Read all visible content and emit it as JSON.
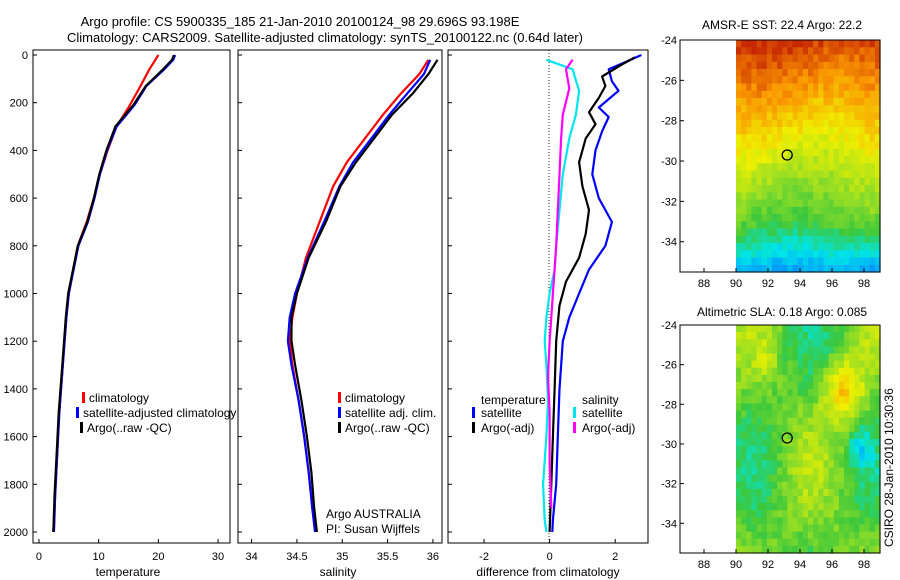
{
  "header": {
    "title_line1": "Argo profile: CS 5900335_185 21-Jan-2010 20100124_98 29.696S 93.198E",
    "title_line2": "Climatology: CARS2009. Satellite-adjusted climatology: synTS_20100122.nc (0.64d later)"
  },
  "side_label": "CSIRO 28-Jan-2010 10:30:36",
  "colors": {
    "climatology": "#ff0000",
    "satellite": "#0000ff",
    "argo": "#000000",
    "cyan": "#00e5ee",
    "magenta": "#ff00ff"
  },
  "chart_data": [
    {
      "type": "line",
      "panel": "temperature",
      "xlabel": "temperature",
      "xlim": [
        -1,
        32
      ],
      "ylim": [
        2060,
        -10
      ],
      "xticks": [
        "0",
        "10",
        "20",
        "30"
      ],
      "yticks": [
        "0",
        "200",
        "400",
        "600",
        "800",
        "1000",
        "1200",
        "1400",
        "1600",
        "1800",
        "2000"
      ],
      "legend": [
        "climatology",
        "satellite-adjusted climatology",
        "Argo(..raw -QC)"
      ],
      "series": [
        {
          "name": "climatology",
          "color": "#ff0000",
          "x": [
            20,
            19.5,
            18.5,
            17,
            15,
            13,
            11.5,
            10.2,
            9.2,
            8,
            6.5,
            5,
            4.6,
            4,
            3.4,
            3,
            2.7,
            2.5
          ],
          "y": [
            0,
            20,
            60,
            130,
            220,
            300,
            400,
            500,
            600,
            700,
            800,
            1000,
            1100,
            1300,
            1500,
            1700,
            1850,
            2000
          ]
        },
        {
          "name": "satellite-adjusted climatology",
          "color": "#0000ff",
          "x": [
            22.8,
            22.5,
            21,
            18,
            16,
            13,
            11.4,
            10.2,
            9.3,
            8.2,
            6.6,
            5,
            4.6,
            4,
            3.4,
            3,
            2.7,
            2.5
          ],
          "y": [
            0,
            20,
            60,
            130,
            210,
            300,
            400,
            500,
            600,
            700,
            800,
            1000,
            1100,
            1300,
            1500,
            1700,
            1850,
            2000
          ]
        },
        {
          "name": "Argo(..raw -QC)",
          "color": "#000000",
          "x": [
            22.6,
            22.3,
            20.8,
            17.9,
            15.8,
            12.8,
            11.3,
            10.1,
            9.2,
            8.1,
            6.5,
            4.9,
            4.5,
            3.9,
            3.3,
            2.9,
            2.6,
            2.4
          ],
          "y": [
            0,
            20,
            60,
            130,
            210,
            300,
            400,
            500,
            600,
            700,
            800,
            1000,
            1100,
            1300,
            1500,
            1700,
            1850,
            2000
          ]
        }
      ]
    },
    {
      "type": "line",
      "panel": "salinity",
      "xlabel": "salinity",
      "xlim": [
        33.85,
        36.1
      ],
      "ylim": [
        2060,
        -10
      ],
      "xticks": [
        "34",
        "34.5",
        "35",
        "35.5",
        "36"
      ],
      "legend": [
        "climatology",
        "satellite adj. clim.",
        "Argo(..raw -QC)"
      ],
      "annotation": [
        "Argo AUSTRALIA",
        "PI: Susan Wijffels"
      ],
      "series": [
        {
          "name": "climatology",
          "color": "#ff0000",
          "x": [
            35.95,
            35.85,
            35.65,
            35.45,
            35.25,
            35.05,
            34.9,
            34.75,
            34.6,
            34.5,
            34.45,
            34.42,
            34.45,
            34.52,
            34.58,
            34.63,
            34.67,
            34.7
          ],
          "y": [
            20,
            80,
            160,
            250,
            350,
            450,
            550,
            700,
            850,
            1000,
            1100,
            1200,
            1300,
            1450,
            1600,
            1750,
            1900,
            2000
          ]
        },
        {
          "name": "satellite adj. clim.",
          "color": "#0000ff",
          "x": [
            35.97,
            35.9,
            35.72,
            35.52,
            35.32,
            35.12,
            34.97,
            34.8,
            34.62,
            34.48,
            34.42,
            34.4,
            34.44,
            34.52,
            34.58,
            34.63,
            34.67,
            34.7
          ],
          "y": [
            20,
            80,
            160,
            250,
            350,
            450,
            550,
            700,
            850,
            1000,
            1100,
            1200,
            1300,
            1450,
            1600,
            1750,
            1900,
            2000
          ]
        },
        {
          "name": "Argo(..raw -QC)",
          "color": "#000000",
          "x": [
            36.05,
            35.95,
            35.78,
            35.55,
            35.35,
            35.15,
            34.98,
            34.82,
            34.63,
            34.5,
            34.44,
            34.44,
            34.48,
            34.55,
            34.61,
            34.66,
            34.69,
            34.72
          ],
          "y": [
            20,
            80,
            160,
            250,
            350,
            450,
            550,
            700,
            850,
            1000,
            1100,
            1200,
            1300,
            1450,
            1600,
            1750,
            1900,
            2000
          ]
        }
      ]
    },
    {
      "type": "line",
      "panel": "difference",
      "xlabel": "difference from climatology",
      "xlim": [
        -3.1,
        3.0
      ],
      "ylim": [
        2060,
        -10
      ],
      "xticks": [
        "-2",
        "0",
        "2"
      ],
      "legend_left": {
        "title": "temperature",
        "items": [
          "satellite",
          "Argo(-adj)"
        ]
      },
      "legend_right": {
        "title": "salinity",
        "items": [
          "satellite",
          "Argo(-adj)"
        ]
      },
      "series": [
        {
          "name": "temperature satellite",
          "color": "#0000ff",
          "x": [
            2.8,
            2.3,
            1.8,
            1.9,
            2.1,
            1.5,
            1.8,
            1.6,
            1.4,
            1.3,
            1.5,
            1.9,
            1.7,
            1.2,
            0.9,
            0.6,
            0.4,
            0.3,
            0.25,
            0.2,
            0.1,
            0.08
          ],
          "y": [
            0,
            30,
            60,
            110,
            150,
            220,
            260,
            320,
            400,
            500,
            600,
            700,
            800,
            900,
            1000,
            1100,
            1200,
            1400,
            1600,
            1800,
            1950,
            2000
          ]
        },
        {
          "name": "temperature Argo(-adj)",
          "color": "#000000",
          "x": [
            2.6,
            2.2,
            1.6,
            1.7,
            1.5,
            1.2,
            1.4,
            1.1,
            0.9,
            1.0,
            1.2,
            1.1,
            0.9,
            0.5,
            0.3,
            0.2,
            0.15,
            0.1,
            0.05,
            0.0
          ],
          "y": [
            10,
            40,
            90,
            130,
            180,
            240,
            290,
            350,
            450,
            550,
            650,
            750,
            850,
            950,
            1050,
            1200,
            1400,
            1600,
            1800,
            2000
          ]
        },
        {
          "name": "salinity satellite",
          "color": "#00e5ee",
          "x": [
            -0.1,
            0.7,
            0.9,
            0.8,
            0.6,
            0.4,
            0.3,
            0.2,
            0.15,
            0.0,
            -0.1,
            -0.15,
            -0.1,
            -0.05,
            -0.1,
            -0.2,
            -0.15,
            -0.1
          ],
          "y": [
            20,
            60,
            150,
            250,
            350,
            500,
            650,
            800,
            900,
            1000,
            1100,
            1200,
            1300,
            1450,
            1600,
            1800,
            1950,
            2000
          ]
        },
        {
          "name": "salinity Argo(-adj)",
          "color": "#ff00ff",
          "x": [
            0.7,
            0.5,
            0.6,
            0.4,
            0.35,
            0.3,
            0.25,
            0.2,
            0.15,
            0.1,
            0.05,
            0.0,
            -0.05,
            0.0,
            0.0,
            0.05
          ],
          "y": [
            20,
            60,
            140,
            250,
            350,
            500,
            650,
            800,
            900,
            1000,
            1100,
            1200,
            1350,
            1500,
            1700,
            1900
          ]
        }
      ]
    },
    {
      "type": "heatmap",
      "panel": "sst",
      "title": "AMSR-E SST: 22.4 Argo: 22.2",
      "xlim": [
        86.5,
        99
      ],
      "ylim": [
        -35.5,
        -24
      ],
      "xticks": [
        "88",
        "90",
        "92",
        "94",
        "96",
        "98"
      ],
      "yticks": [
        "-24",
        "-26",
        "-28",
        "-30",
        "-32",
        "-34"
      ],
      "marker": {
        "lon": 93.2,
        "lat": -29.7
      },
      "data_lon_start": 90
    },
    {
      "type": "heatmap",
      "panel": "sla",
      "title": "Altimetric SLA: 0.18 Argo: 0.085",
      "xlim": [
        86.5,
        99
      ],
      "ylim": [
        -35.5,
        -24
      ],
      "xticks": [
        "88",
        "90",
        "92",
        "94",
        "96",
        "98"
      ],
      "yticks": [
        "-24",
        "-26",
        "-28",
        "-30",
        "-32",
        "-34"
      ],
      "marker": {
        "lon": 93.2,
        "lat": -29.7
      },
      "data_lon_start": 90
    }
  ]
}
